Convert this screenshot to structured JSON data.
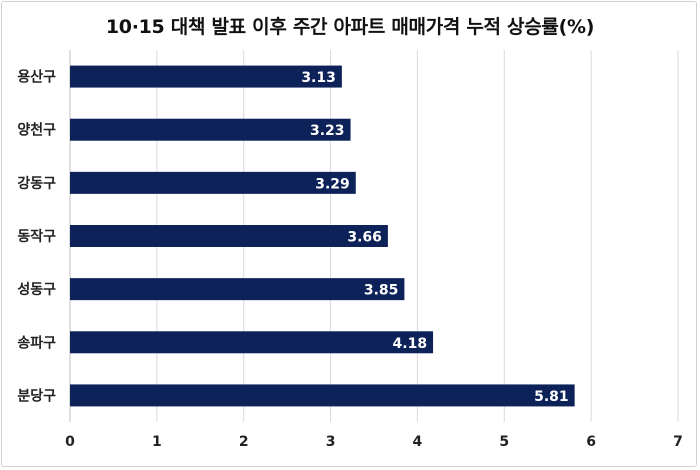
{
  "chart_data": {
    "type": "bar",
    "orientation": "horizontal",
    "title": "10·15 대책 발표 이후 주간 아파트 매매가격 누적 상승률(%)",
    "categories": [
      "용산구",
      "양천구",
      "강동구",
      "동작구",
      "성동구",
      "송파구",
      "분당구"
    ],
    "values": [
      3.13,
      3.23,
      3.29,
      3.66,
      3.85,
      4.18,
      5.81
    ],
    "value_labels": [
      "3.13",
      "3.23",
      "3.29",
      "3.66",
      "3.85",
      "4.18",
      "5.81"
    ],
    "xlim": [
      0,
      7
    ],
    "xticks": [
      "0",
      "1",
      "2",
      "3",
      "4",
      "5",
      "6",
      "7"
    ],
    "xlabel": "",
    "ylabel": "",
    "grid": "vertical",
    "legend": "none",
    "bar_color": "#0d2259"
  }
}
